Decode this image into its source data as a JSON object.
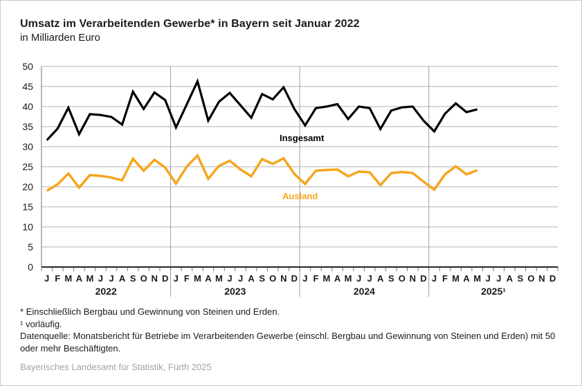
{
  "header": {
    "title": "Umsatz im Verarbeitenden Gewerbe* in Bayern seit Januar 2022",
    "subtitle": "in Milliarden Euro"
  },
  "chart_data": {
    "type": "line",
    "title": "Umsatz im Verarbeitenden Gewerbe in Bayern seit Januar 2022",
    "unit": "Milliarden Euro",
    "x_start": "Januar 2022",
    "x_end": "Mai 2025",
    "month_labels": [
      "J",
      "F",
      "M",
      "A",
      "M",
      "J",
      "J",
      "A",
      "S",
      "O",
      "N",
      "D"
    ],
    "year_labels": [
      "2022",
      "2023",
      "2024",
      "2025¹"
    ],
    "ylim": [
      0,
      50
    ],
    "ytick_step": 5,
    "grid": true,
    "legend_position": "inline-labels",
    "series": [
      {
        "name": "Insgesamt",
        "color": "#000000",
        "values": [
          31.6,
          34.5,
          39.7,
          33.1,
          38.1,
          37.9,
          37.4,
          35.5,
          43.7,
          39.4,
          43.5,
          41.6,
          34.8,
          40.5,
          46.3,
          36.5,
          41.2,
          43.4,
          40.3,
          37.2,
          43.1,
          41.8,
          44.8,
          39.4,
          35.3,
          39.6,
          40.0,
          40.6,
          36.9,
          40.0,
          39.6,
          34.4,
          39.0,
          39.8,
          40.0,
          36.5,
          33.8,
          38.2,
          40.8,
          38.6,
          39.3
        ]
      },
      {
        "name": "Ausland",
        "color": "#f5a61e",
        "values": [
          19.0,
          20.6,
          23.3,
          19.8,
          22.9,
          22.7,
          22.3,
          21.6,
          27.0,
          24.0,
          26.7,
          24.8,
          20.8,
          25.0,
          27.8,
          22.0,
          25.2,
          26.5,
          24.3,
          22.6,
          26.9,
          25.7,
          27.1,
          23.2,
          20.7,
          24.0,
          24.2,
          24.3,
          22.6,
          23.8,
          23.6,
          20.4,
          23.4,
          23.7,
          23.4,
          21.3,
          19.3,
          23.1,
          25.1,
          23.1,
          24.1
        ]
      }
    ]
  },
  "footnotes": [
    "* Einschließlich Bergbau und Gewinnung von Steinen und Erden.",
    "¹  vorläufig.",
    "Datenquelle: Monatsbericht für Betriebe im Verarbeitenden Gewerbe (einschl. Bergbau und Gewinnung von Steinen und Erden) mit 50 oder mehr Beschäftigten."
  ],
  "credit": "Bayerisches Landesamt für Statistik, Fürth 2025",
  "colors": {
    "grid": "#b0b0b0",
    "year_divider": "#9e9e9e",
    "axis": "#262626",
    "tick": "#737373",
    "credit_text": "#a3a3a3"
  }
}
